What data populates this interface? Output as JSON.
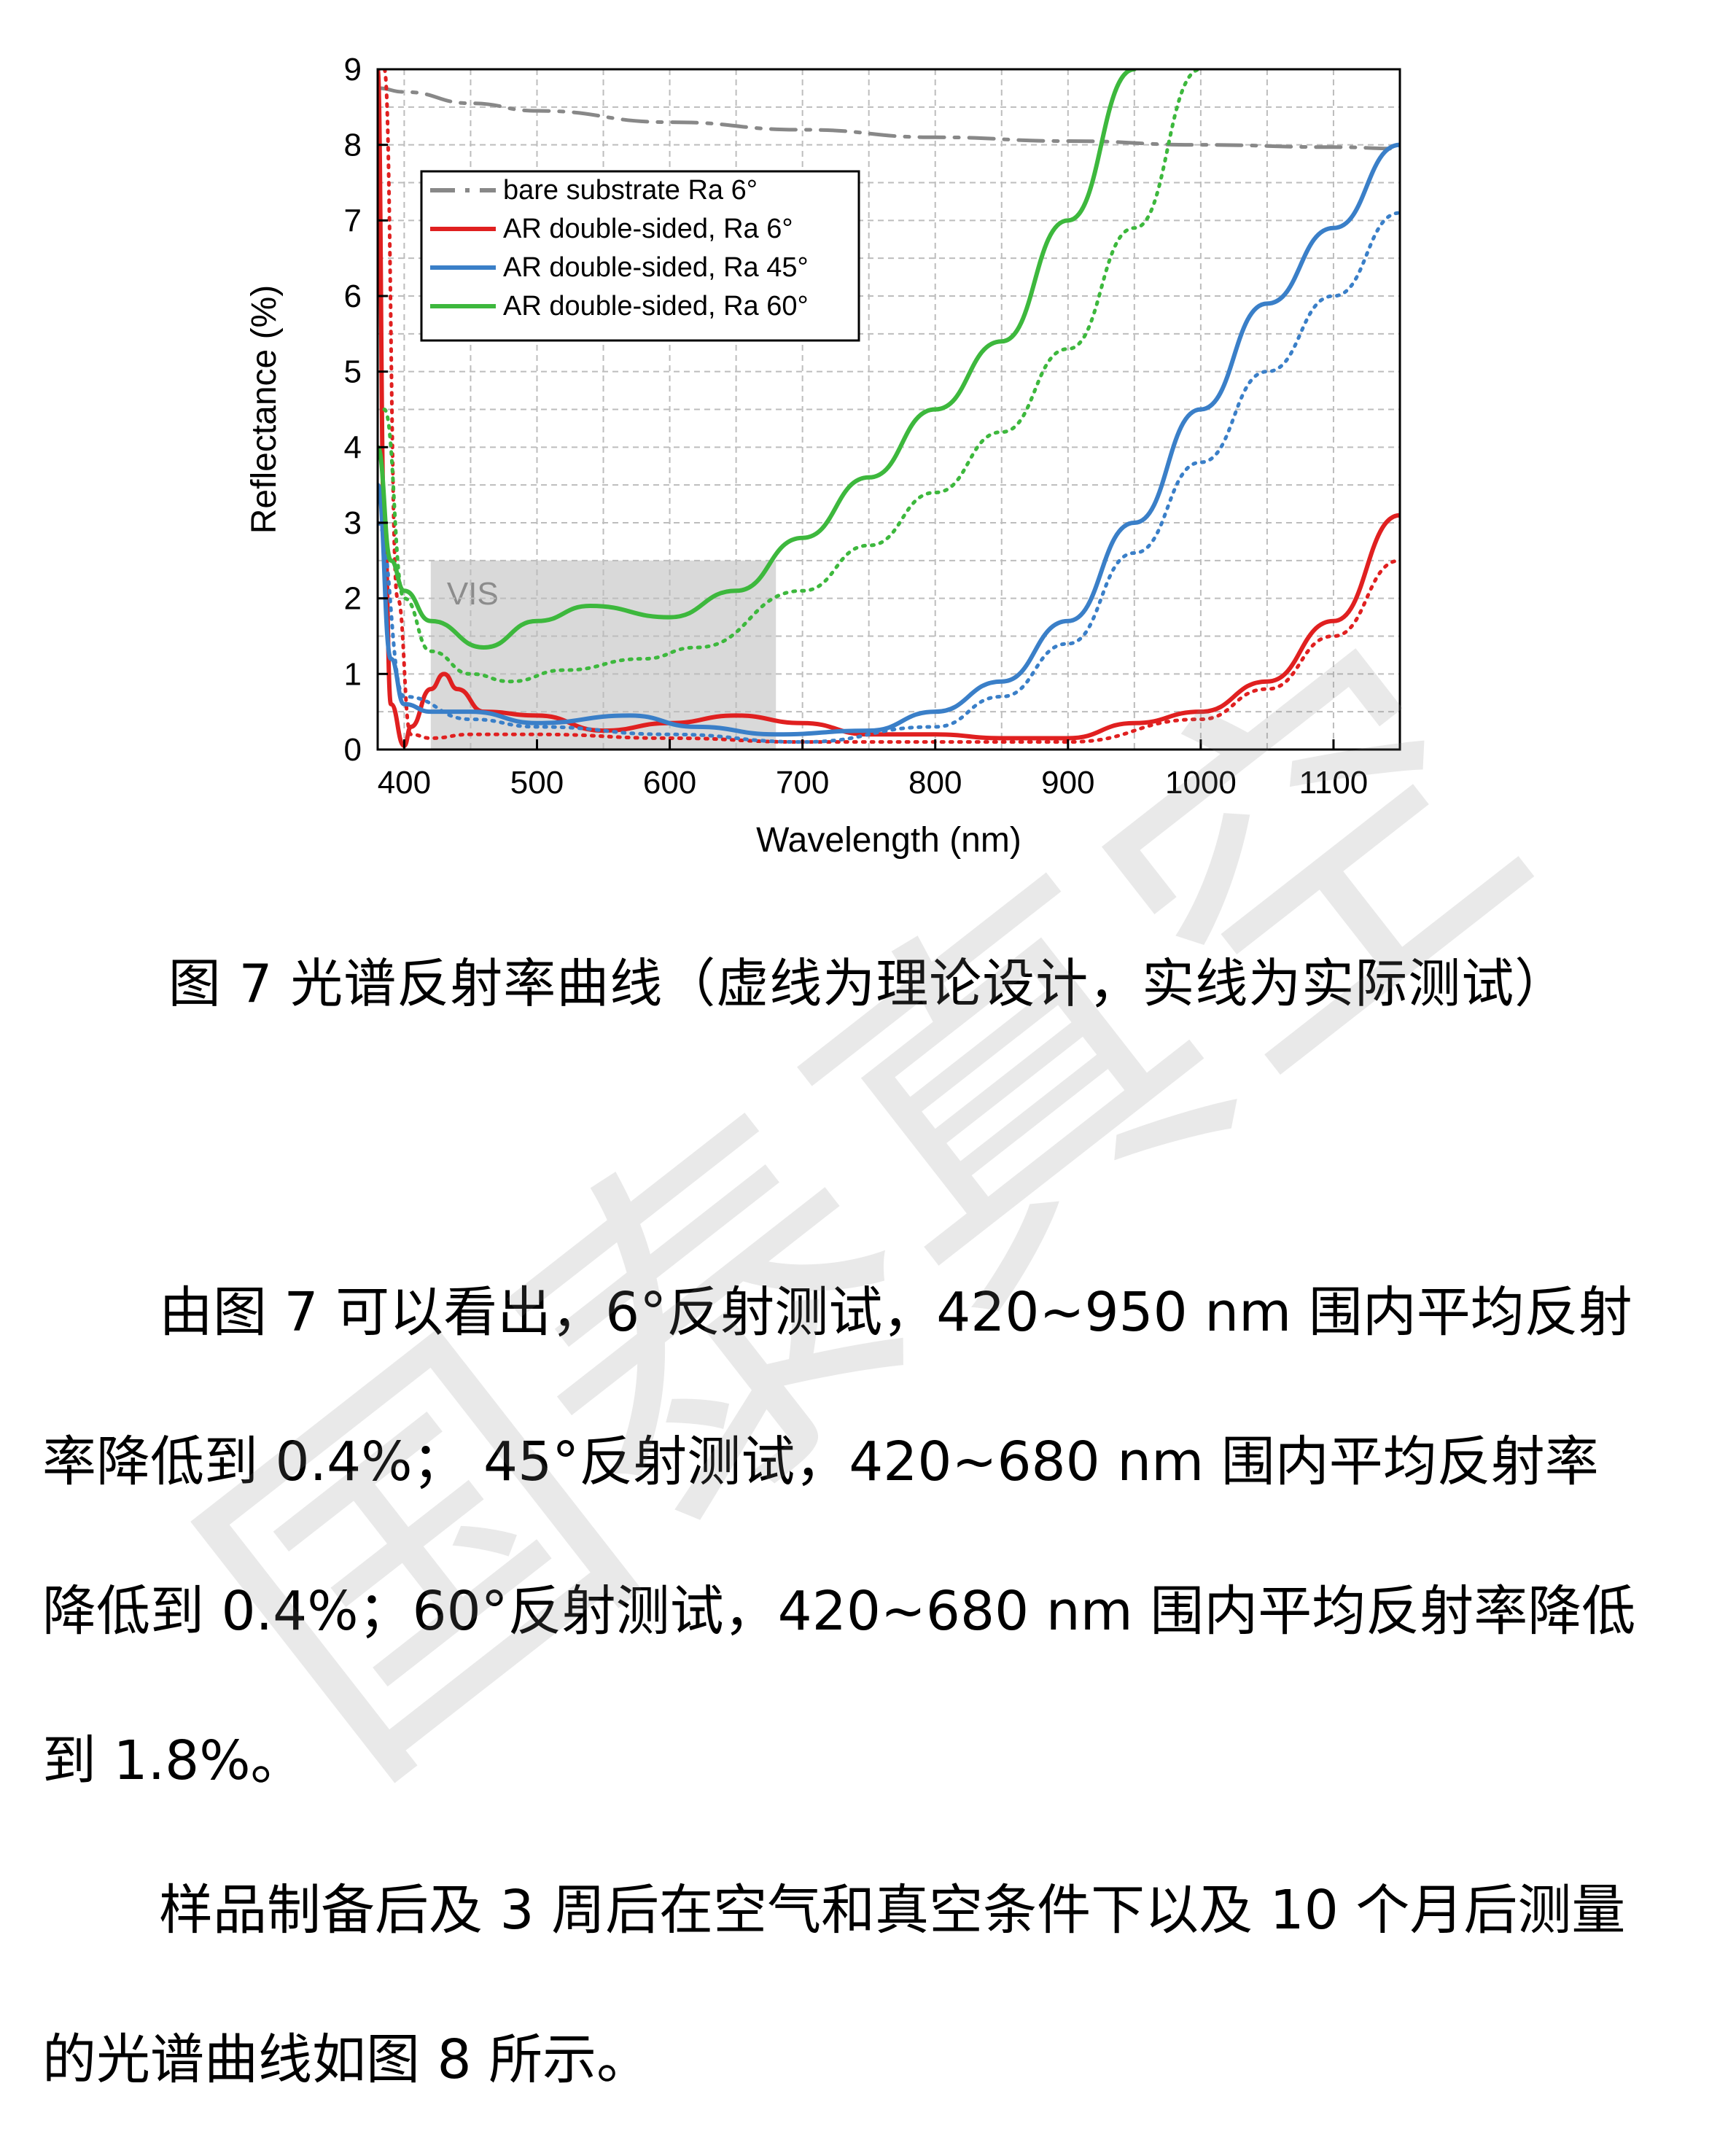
{
  "chart_data": {
    "type": "line",
    "xlabel": "Wavelength (nm)",
    "ylabel": "Reflectance (%)",
    "xlim": [
      380,
      1150
    ],
    "ylim": [
      0,
      9
    ],
    "xticks": [
      "400",
      "500",
      "600",
      "700",
      "800",
      "900",
      "1000",
      "1100"
    ],
    "yticks": [
      "0",
      "1",
      "2",
      "3",
      "4",
      "5",
      "6",
      "7",
      "8",
      "9"
    ],
    "grid": true,
    "legend_position": "top-left",
    "region": {
      "label": "VIS",
      "x": [
        420,
        680
      ],
      "y": [
        0,
        2.5
      ]
    },
    "series": [
      {
        "name": "bare substrate    Ra 6°",
        "color": "#888888",
        "style": "dashdot",
        "x": [
          380,
          400,
          450,
          500,
          600,
          700,
          800,
          900,
          1000,
          1100,
          1150
        ],
        "y": [
          8.75,
          8.7,
          8.55,
          8.45,
          8.3,
          8.2,
          8.1,
          8.05,
          8.0,
          7.97,
          7.95
        ]
      },
      {
        "name": "AR double-sided, Ra 6°",
        "color": "#e02020",
        "style": "solid",
        "x": [
          380,
          385,
          390,
          400,
          405,
          420,
          430,
          440,
          460,
          500,
          550,
          600,
          650,
          700,
          750,
          800,
          850,
          900,
          950,
          1000,
          1050,
          1100,
          1150
        ],
        "y": [
          9.0,
          3.0,
          0.6,
          0.05,
          0.3,
          0.8,
          1.0,
          0.8,
          0.5,
          0.45,
          0.25,
          0.35,
          0.45,
          0.35,
          0.2,
          0.2,
          0.15,
          0.15,
          0.35,
          0.5,
          0.9,
          1.7,
          3.1
        ]
      },
      {
        "name": "AR double-sided, Ra 6° (design)",
        "color": "#e02020",
        "style": "dotted",
        "x": [
          385,
          395,
          405,
          420,
          450,
          500,
          600,
          700,
          800,
          900,
          1000,
          1050,
          1100,
          1150
        ],
        "y": [
          9.0,
          2.0,
          0.2,
          0.15,
          0.2,
          0.2,
          0.15,
          0.1,
          0.1,
          0.1,
          0.4,
          0.8,
          1.5,
          2.5
        ]
      },
      {
        "name": "AR double-sided, Ra 45°",
        "color": "#3a7fc8",
        "style": "solid",
        "x": [
          380,
          390,
          400,
          420,
          450,
          500,
          570,
          620,
          680,
          750,
          800,
          850,
          900,
          950,
          1000,
          1050,
          1100,
          1150
        ],
        "y": [
          3.5,
          1.2,
          0.6,
          0.5,
          0.5,
          0.35,
          0.45,
          0.3,
          0.2,
          0.25,
          0.5,
          0.9,
          1.7,
          3.0,
          4.5,
          5.9,
          6.9,
          8.0
        ]
      },
      {
        "name": "AR double-sided, Ra 45° (design)",
        "color": "#3a7fc8",
        "style": "dotted",
        "x": [
          380,
          400,
          450,
          500,
          600,
          700,
          800,
          850,
          900,
          950,
          1000,
          1050,
          1100,
          1150
        ],
        "y": [
          3.0,
          0.7,
          0.4,
          0.3,
          0.2,
          0.1,
          0.3,
          0.7,
          1.4,
          2.6,
          3.8,
          5.0,
          6.0,
          7.1
        ]
      },
      {
        "name": "AR double-sided, Ra 60°",
        "color": "#3db83d",
        "style": "solid",
        "x": [
          380,
          390,
          400,
          420,
          460,
          500,
          540,
          600,
          650,
          700,
          750,
          800,
          850,
          900,
          950
        ],
        "y": [
          4.0,
          2.5,
          2.1,
          1.7,
          1.35,
          1.7,
          1.9,
          1.75,
          2.1,
          2.8,
          3.6,
          4.5,
          5.4,
          7.0,
          9.0
        ]
      },
      {
        "name": "AR double-sided, Ra 60° (design)",
        "color": "#3db83d",
        "style": "dotted",
        "x": [
          385,
          400,
          420,
          450,
          480,
          520,
          580,
          620,
          700,
          750,
          800,
          850,
          900,
          950,
          1000
        ],
        "y": [
          4.5,
          2.0,
          1.3,
          1.0,
          0.9,
          1.05,
          1.2,
          1.35,
          2.1,
          2.7,
          3.4,
          4.2,
          5.3,
          6.9,
          9.0
        ]
      }
    ]
  },
  "legend": [
    {
      "text": "bare substrate    Ra 6°",
      "color": "#888888",
      "style": "dashdot"
    },
    {
      "text": "AR double-sided, Ra 6°",
      "color": "#e02020",
      "style": "solid"
    },
    {
      "text": "AR double-sided, Ra 45°",
      "color": "#3a7fc8",
      "style": "solid"
    },
    {
      "text": "AR double-sided, Ra 60°",
      "color": "#3db83d",
      "style": "solid"
    }
  ],
  "caption": "图 7 光谱反射率曲线（虚线为理论设计，实线为实际测试）",
  "paragraph1": [
    "由图 7 可以看出，6°反射测试，420~950 nm 围内平均反射",
    "率降低到 0.4%；  45°反射测试，420~680 nm 围内平均反射率",
    "降低到 0.4%；60°反射测试，420~680 nm 围内平均反射率降低",
    "到 1.8%。"
  ],
  "paragraph2": [
    "样品制备后及 3 周后在空气和真空条件下以及 10 个月后测量",
    "的光谱曲线如图 8 所示。"
  ],
  "watermark": "国泰真空"
}
